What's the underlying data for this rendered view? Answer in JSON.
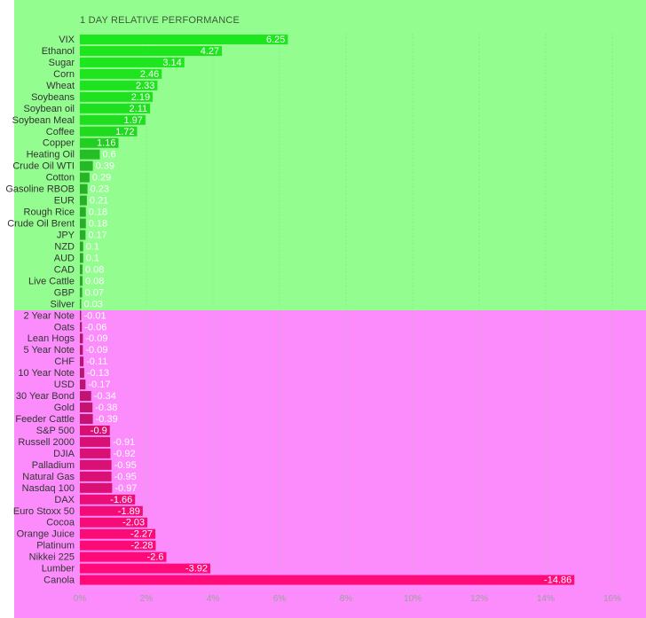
{
  "colors": {
    "positive_background": "#93fd8f",
    "negative_background": "#fc8cfc",
    "positive_bar_strong": "#1ee61e",
    "positive_bar_weak": "#2b9a2b",
    "negative_bar_weak": "#a0196e",
    "negative_bar_strong": "#ff0a78",
    "gridline": "#9acd9a",
    "value_label_light": "#ffffff",
    "value_label_dark": "#222222"
  },
  "chart_data": {
    "type": "bar",
    "orientation": "horizontal",
    "title": "1 DAY RELATIVE PERFORMANCE",
    "xlabel": "",
    "ylabel": "",
    "xlim": [
      0,
      16
    ],
    "x_ticks": [
      0,
      2,
      4,
      6,
      8,
      10,
      12,
      14,
      16
    ],
    "x_tick_labels": [
      "0%",
      "2%",
      "4%",
      "6%",
      "8%",
      "10%",
      "12%",
      "14%",
      "16%"
    ],
    "grid": true,
    "bar_length": "absolute value",
    "categories": [
      "VIX",
      "Ethanol",
      "Sugar",
      "Corn",
      "Wheat",
      "Soybeans",
      "Soybean oil",
      "Soybean Meal",
      "Coffee",
      "Copper",
      "Heating Oil",
      "Crude Oil WTI",
      "Cotton",
      "Gasoline RBOB",
      "EUR",
      "Rough Rice",
      "Crude Oil Brent",
      "JPY",
      "NZD",
      "AUD",
      "CAD",
      "Live Cattle",
      "GBP",
      "Silver",
      "2 Year Note",
      "Oats",
      "Lean Hogs",
      "5 Year Note",
      "CHF",
      "10 Year Note",
      "USD",
      "30 Year Bond",
      "Gold",
      "Feeder Cattle",
      "S&P 500",
      "Russell 2000",
      "DJIA",
      "Palladium",
      "Natural Gas",
      "Nasdaq 100",
      "DAX",
      "Euro Stoxx 50",
      "Cocoa",
      "Orange Juice",
      "Platinum",
      "Nikkei 225",
      "Lumber",
      "Canola"
    ],
    "values": [
      6.25,
      4.27,
      3.14,
      2.46,
      2.33,
      2.19,
      2.11,
      1.97,
      1.72,
      1.16,
      0.6,
      0.39,
      0.29,
      0.23,
      0.21,
      0.18,
      0.18,
      0.17,
      0.1,
      0.1,
      0.08,
      0.08,
      0.07,
      0.03,
      -0.01,
      -0.06,
      -0.09,
      -0.09,
      -0.11,
      -0.13,
      -0.17,
      -0.34,
      -0.38,
      -0.39,
      -0.9,
      -0.91,
      -0.92,
      -0.95,
      -0.95,
      -0.97,
      -1.66,
      -1.89,
      -2.03,
      -2.27,
      -2.28,
      -2.6,
      -3.92,
      -14.86
    ],
    "value_labels": [
      "6.25",
      "4.27",
      "3.14",
      "2.46",
      "2.33",
      "2.19",
      "2.11",
      "1.97",
      "1.72",
      "1.16",
      "0.6",
      "0.39",
      "0.29",
      "0.23",
      "0.21",
      "0.18",
      "0.18",
      "0.17",
      "0.1",
      "0.1",
      "0.08",
      "0.08",
      "0.07",
      "0.03",
      "-0.01",
      "-0.06",
      "-0.09",
      "-0.09",
      "-0.11",
      "-0.13",
      "-0.17",
      "-0.34",
      "-0.38",
      "-0.39",
      "-0.9",
      "-0.91",
      "-0.92",
      "-0.95",
      "-0.95",
      "-0.97",
      "-1.66",
      "-1.89",
      "-2.03",
      "-2.27",
      "-2.28",
      "-2.6",
      "-3.92",
      "-14.86"
    ]
  }
}
